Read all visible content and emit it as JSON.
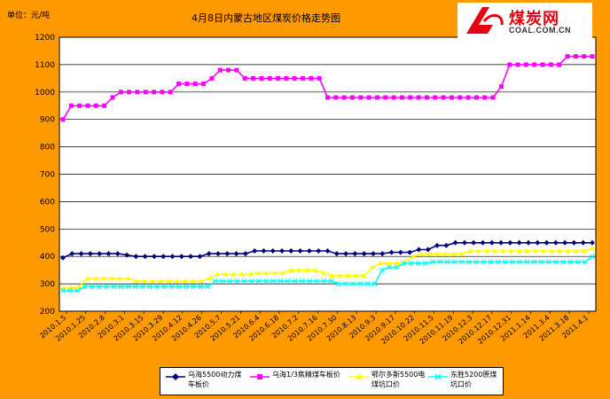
{
  "colors": {
    "background": "#FF9900",
    "plot_bg": "#FFFFFF",
    "logo_red": "#E60012"
  },
  "header": {
    "unit": "单位：元/吨",
    "title": "4月8日内蒙古地区煤炭价格走势图"
  },
  "logo": {
    "brand": "煤炭网",
    "domain": "COAL.COM.CN",
    "icon": "coal-net-logo-icon"
  },
  "chart_data": {
    "type": "line",
    "title": "4月8日内蒙古地区煤炭价格走势图",
    "ylabel": "单位：元/吨",
    "xlabel": "",
    "ylim": [
      200,
      1200
    ],
    "yticks": [
      200,
      300,
      400,
      500,
      600,
      700,
      800,
      900,
      1000,
      1100,
      1200
    ],
    "grid": true,
    "legend_position": "bottom",
    "x_tick_labels": [
      "2010.1.5",
      "2010.1.25",
      "2010.2.8",
      "2010.3.1",
      "2010.3.15",
      "2010.3.29",
      "2010.4.12",
      "2010.4.26",
      "2010.5.7",
      "2010.5.21",
      "2010.6.4",
      "2010.6.18",
      "2010.7.2",
      "2010.7.16",
      "2010.7.30",
      "2010.8.13",
      "2010.9.3",
      "2010.9.17",
      "2010.10.22",
      "2010.11.5",
      "2010.11.19",
      "2010.12.3",
      "2010.12.17",
      "2010.12.31",
      "2011.1.14",
      "2011.3.4",
      "2011.3.18",
      "2011.4.1"
    ],
    "series": [
      {
        "name": "乌海5500动力煤车板价",
        "color": "#000080",
        "marker": "diamond",
        "values": [
          395,
          410,
          410,
          410,
          410,
          410,
          410,
          405,
          400,
          400,
          400,
          400,
          400,
          400,
          400,
          400,
          410,
          410,
          410,
          410,
          410,
          420,
          420,
          420,
          420,
          420,
          420,
          420,
          420,
          420,
          410,
          410,
          410,
          410,
          410,
          410,
          415,
          415,
          415,
          425,
          425,
          440,
          440,
          450,
          450,
          450,
          450,
          450,
          450,
          450,
          450,
          450,
          450,
          450,
          450,
          450,
          450,
          450,
          450
        ]
      },
      {
        "name": "乌海1/3焦精煤车板价",
        "color": "#FF00FF",
        "marker": "square",
        "values": [
          900,
          950,
          950,
          950,
          950,
          950,
          980,
          1000,
          1000,
          1000,
          1000,
          1000,
          1000,
          1000,
          1030,
          1030,
          1030,
          1030,
          1050,
          1080,
          1080,
          1080,
          1050,
          1050,
          1050,
          1050,
          1050,
          1050,
          1050,
          1050,
          1050,
          1050,
          980,
          980,
          980,
          980,
          980,
          980,
          980,
          980,
          980,
          980,
          980,
          980,
          980,
          980,
          980,
          980,
          980,
          980,
          980,
          980,
          980,
          1020,
          1100,
          1100,
          1100,
          1100,
          1100,
          1100,
          1100,
          1130,
          1130,
          1130,
          1130
        ]
      },
      {
        "name": "鄂尔多斯5500电煤坑口价",
        "color": "#FFFF00",
        "marker": "triangle",
        "values": [
          285,
          285,
          290,
          320,
          320,
          320,
          320,
          320,
          320,
          310,
          310,
          310,
          310,
          310,
          310,
          310,
          310,
          310,
          320,
          335,
          335,
          335,
          335,
          335,
          340,
          340,
          340,
          340,
          350,
          350,
          350,
          350,
          340,
          330,
          330,
          330,
          330,
          330,
          360,
          375,
          375,
          375,
          380,
          400,
          410,
          410,
          410,
          410,
          410,
          410,
          420,
          420,
          420,
          420,
          420,
          420,
          420,
          420,
          420,
          420,
          420,
          420,
          420,
          420,
          420,
          430
        ]
      },
      {
        "name": "东胜5200原煤坑口价",
        "color": "#00FFFF",
        "marker": "x",
        "values": [
          275,
          275,
          275,
          290,
          290,
          290,
          290,
          290,
          290,
          290,
          290,
          290,
          290,
          290,
          290,
          290,
          290,
          290,
          290,
          290,
          290,
          310,
          310,
          310,
          310,
          310,
          310,
          310,
          310,
          310,
          310,
          310,
          310,
          310,
          310,
          310,
          310,
          310,
          300,
          300,
          300,
          300,
          300,
          300,
          350,
          360,
          360,
          375,
          375,
          375,
          375,
          380,
          380,
          380,
          380,
          380,
          380,
          380,
          380,
          380,
          380,
          380,
          380,
          380,
          380,
          380,
          380,
          380,
          380,
          380,
          380,
          380,
          380,
          400
        ]
      }
    ]
  }
}
